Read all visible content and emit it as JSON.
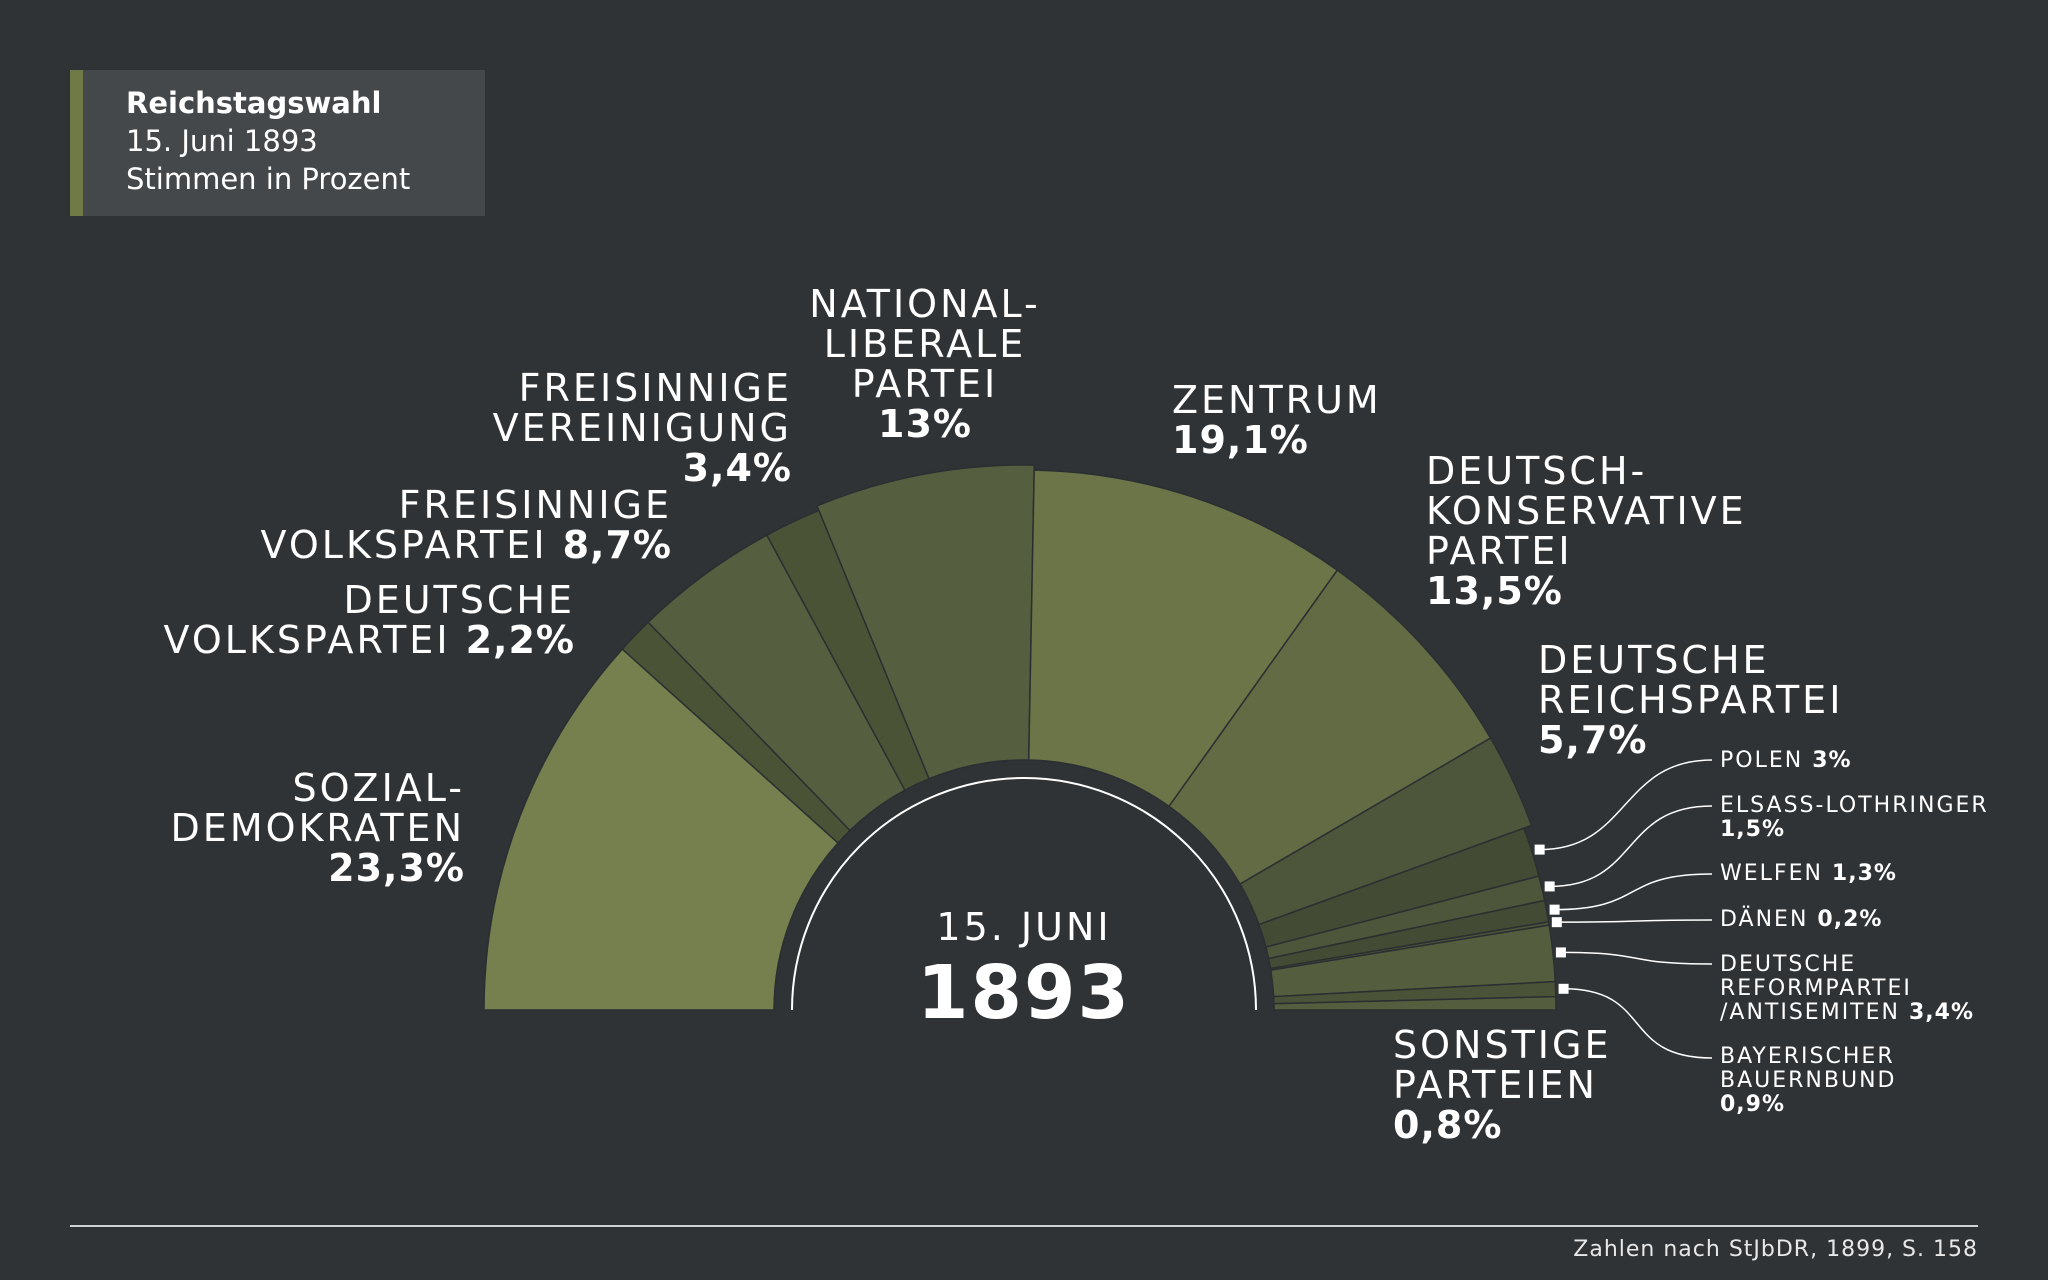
{
  "header": {
    "title": "Reichstagswahl",
    "date": "15. Juni 1893",
    "subtitle": "Stimmen in Prozent"
  },
  "center": {
    "date": "15. JUNI",
    "year": "1893"
  },
  "source": "Zahlen nach StJbDR, 1899, S. 158",
  "chart_data": {
    "type": "pie",
    "subtype": "semicircle-donut",
    "title": "Reichstagswahl",
    "subtitle": "15. Juni 1893 · Stimmen in Prozent",
    "unit": "%",
    "slices": [
      {
        "label": "SOZIAL-DEMOKRATEN",
        "value": 23.3,
        "display": "23,3%",
        "color": "#75804e"
      },
      {
        "label": "DEUTSCHE VOLKSPARTEI",
        "value": 2.2,
        "display": "2,2%",
        "color": "#4b5337"
      },
      {
        "label": "FREISINNIGE VOLKSPARTEI",
        "value": 8.7,
        "display": "8,7%",
        "color": "#565e40"
      },
      {
        "label": "FREISINNIGE VEREINIGUNG",
        "value": 3.4,
        "display": "3,4%",
        "color": "#4b5337"
      },
      {
        "label": "NATIONAL-LIBERALE PARTEI",
        "value": 13,
        "display": "13%",
        "color": "#565e40"
      },
      {
        "label": "ZENTRUM",
        "value": 19.1,
        "display": "19,1%",
        "color": "#6b7548"
      },
      {
        "label": "DEUTSCH-KONSERVATIVE PARTEI",
        "value": 13.5,
        "display": "13,5%",
        "color": "#626b44"
      },
      {
        "label": "DEUTSCHE REICHSPARTEI",
        "value": 5.7,
        "display": "5,7%",
        "color": "#4d553a"
      },
      {
        "label": "POLEN",
        "value": 3,
        "display": "3%",
        "color": "#444b34"
      },
      {
        "label": "ELSASS-LOTHRINGER",
        "value": 1.5,
        "display": "1,5%",
        "color": "#4d553a"
      },
      {
        "label": "WELFEN",
        "value": 1.3,
        "display": "1,3%",
        "color": "#444b34"
      },
      {
        "label": "DÄNEN",
        "value": 0.2,
        "display": "0,2%",
        "color": "#4d553a"
      },
      {
        "label": "DEUTSCHE REFORMPARTEI /ANTISEMITEN",
        "value": 3.4,
        "display": "3,4%",
        "color": "#555d3f"
      },
      {
        "label": "BAYERISCHER BAUERNBUND",
        "value": 0.9,
        "display": "0,9%",
        "color": "#4a5238"
      },
      {
        "label": "SONSTIGE PARTEIEN",
        "value": 0.8,
        "display": "0,8%",
        "color": "#555d3f"
      }
    ]
  }
}
